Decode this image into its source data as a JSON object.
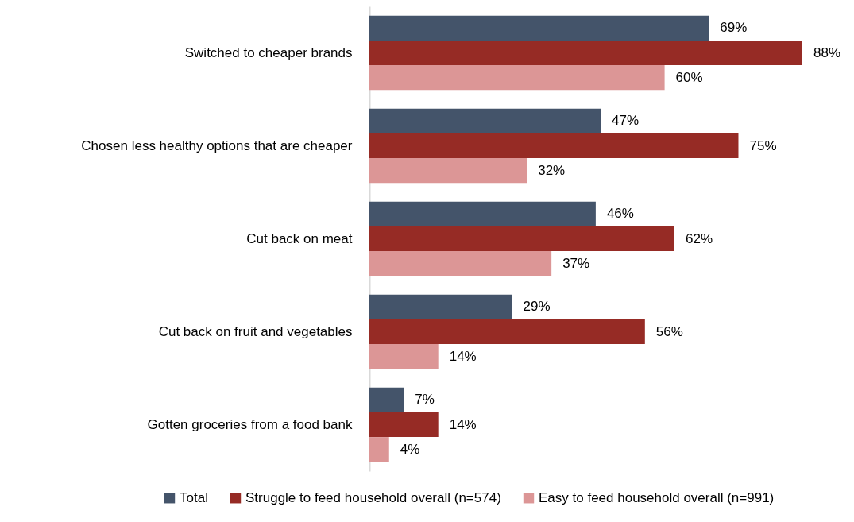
{
  "chart_data": {
    "type": "bar",
    "orientation": "horizontal",
    "categories": [
      "Switched to cheaper brands",
      "Chosen less healthy options that are cheaper",
      "Cut back on meat",
      "Cut back on fruit and vegetables",
      "Gotten groceries from a food bank"
    ],
    "series": [
      {
        "name": "Total",
        "color": "#44546a",
        "values": [
          69,
          47,
          46,
          29,
          7
        ],
        "value_labels": [
          "69%",
          "47%",
          "46%",
          "29%",
          "7%"
        ]
      },
      {
        "name": "Struggle to feed household overall (n=574)",
        "color": "#962b25",
        "values": [
          88,
          75,
          62,
          56,
          14
        ],
        "value_labels": [
          "88%",
          "75%",
          "62%",
          "56%",
          "14%"
        ]
      },
      {
        "name": "Easy to feed household overall (n=991)",
        "color": "#dc9696",
        "values": [
          60,
          32,
          37,
          14,
          4
        ],
        "value_labels": [
          "60%",
          "32%",
          "37%",
          "14%",
          "4%"
        ]
      }
    ],
    "legend": "bottom",
    "tick_labels": "y"
  }
}
